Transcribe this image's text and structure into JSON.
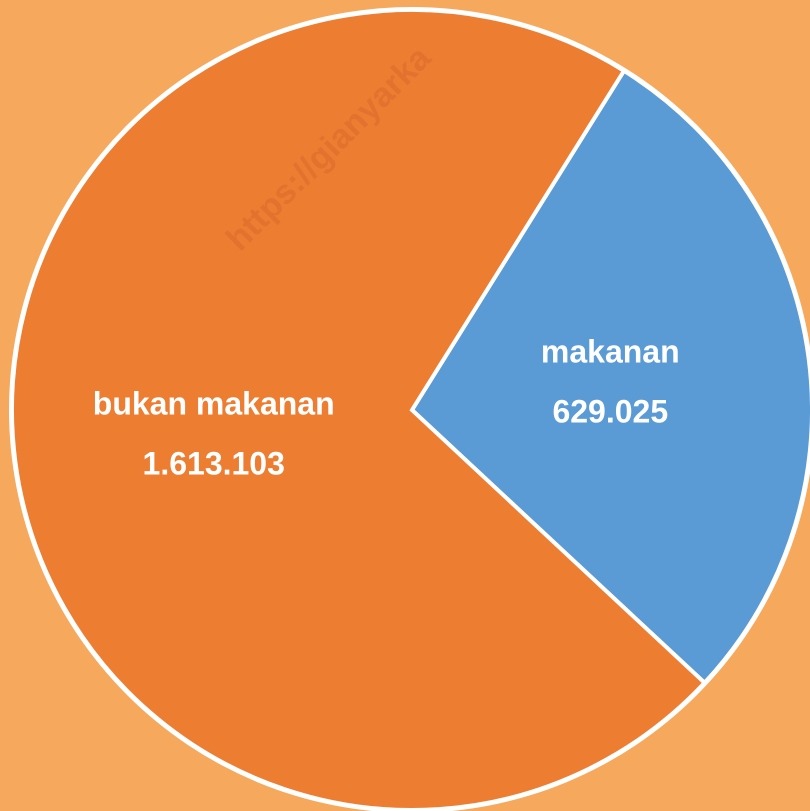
{
  "chart_data": {
    "type": "pie",
    "categories": [
      "makanan",
      "bukan makanan"
    ],
    "values": [
      629025,
      1613103
    ],
    "value_labels": [
      "629.025",
      "1.613.103"
    ],
    "colors": [
      "#5b9bd5",
      "#ed7d31"
    ],
    "watermark": "https://gianyarka"
  }
}
